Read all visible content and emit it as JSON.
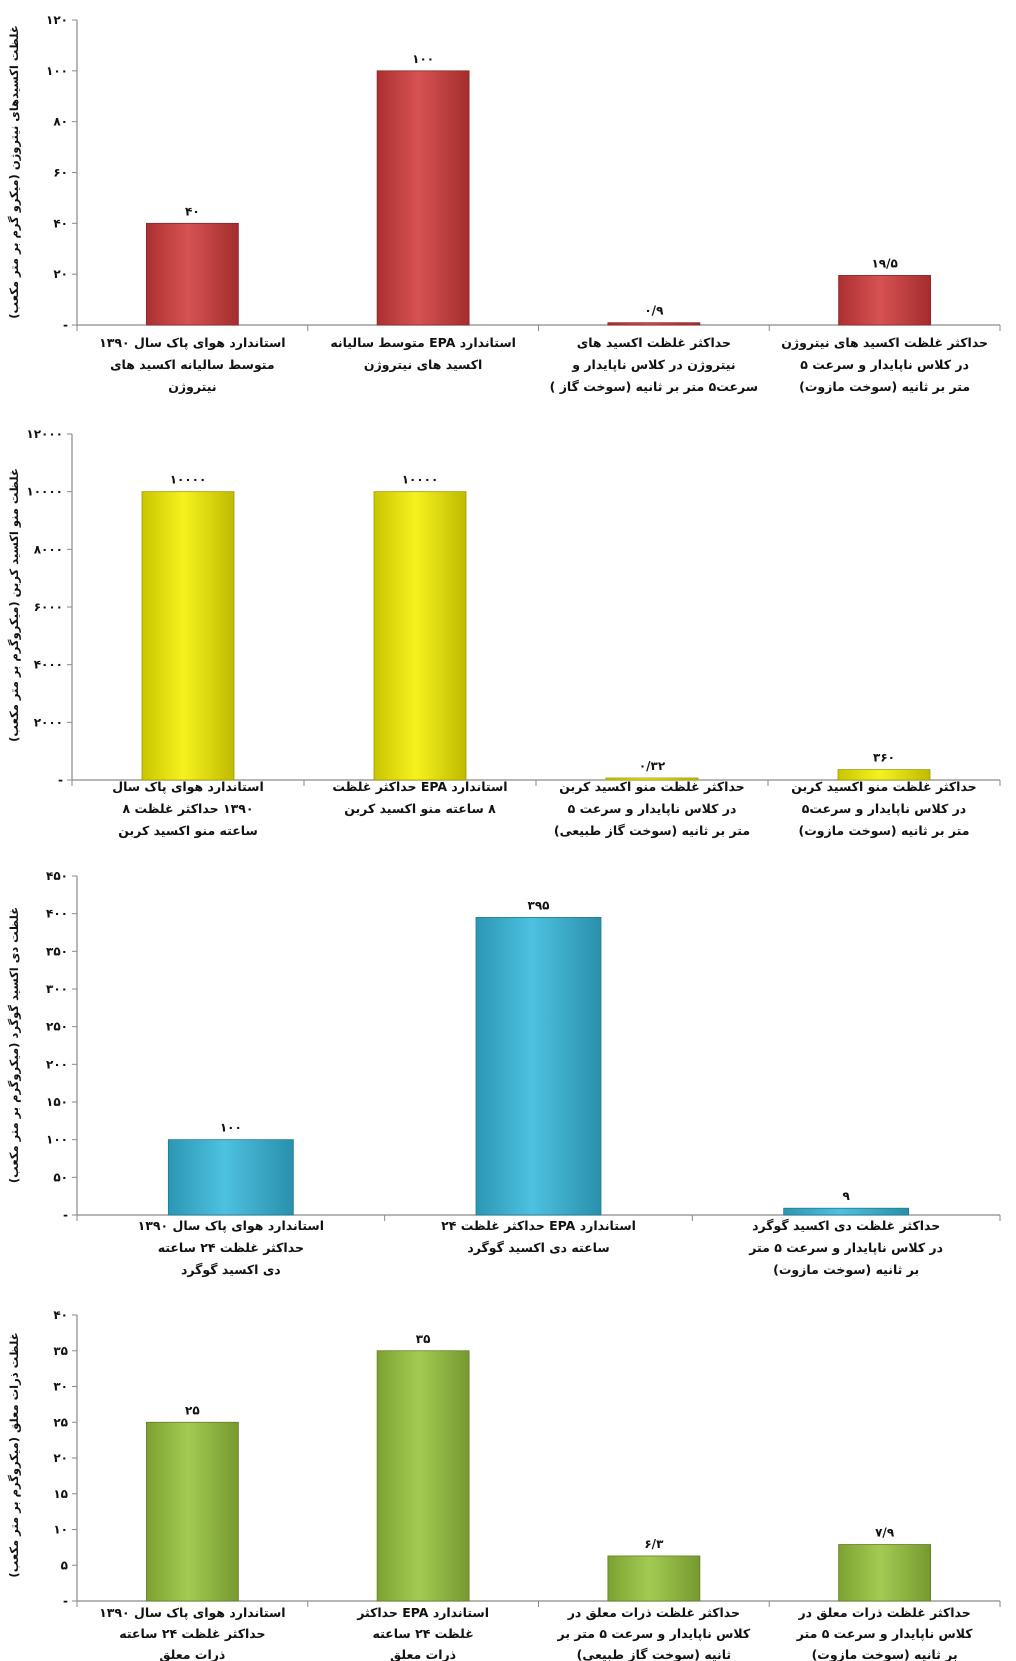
{
  "chart_data": [
    {
      "type": "bar",
      "ylabel": "غلظت اکسیدهای نیتروژن (میکرو گرم بر متر مکعب)",
      "ylim": [
        0,
        120
      ],
      "yticks": [
        0,
        20,
        40,
        60,
        80,
        100,
        120
      ],
      "ytick_labels": [
        "-",
        "۲۰",
        "۴۰",
        "۶۰",
        "۸۰",
        "۱۰۰",
        "۱۲۰"
      ],
      "color": "#d23a3a",
      "categories": [
        [
          "استاندارد هوای پاک سال ۱۳۹۰",
          "متوسط سالیانه اکسید های",
          "نیتروژن"
        ],
        [
          "استاندارد EPA متوسط سالیانه",
          "اکسید های نیتروژن"
        ],
        [
          "حداکثر غلظت اکسید های",
          "نیتروژن در کلاس ناپایدار و",
          "سرعت۵ متر بر ثانیه (سوخت گاز )"
        ],
        [
          "حداکثر غلظت اکسید های نیتروژن",
          "در کلاس ناپایدار و سرعت ۵",
          "متر بر ثانیه (سوخت مازوت)"
        ]
      ],
      "values": [
        40,
        100,
        0.9,
        19.5
      ],
      "value_labels": [
        "۴۰",
        "۱۰۰",
        "۰/۹",
        "۱۹/۵"
      ]
    },
    {
      "type": "bar",
      "ylabel": "غلظت منو اکسید کربن (میکروگرم بر متر مکعب)",
      "ylim": [
        0,
        12000
      ],
      "yticks": [
        0,
        2000,
        4000,
        6000,
        8000,
        10000,
        12000
      ],
      "ytick_labels": [
        "-",
        "۲۰۰۰",
        "۴۰۰۰",
        "۶۰۰۰",
        "۸۰۰۰",
        "۱۰۰۰۰",
        "۱۲۰۰۰"
      ],
      "color": "#f5f000",
      "categories": [
        [
          "استاندارد هوای پاک سال",
          "۱۳۹۰ حداکثر غلظت ۸",
          "ساعته منو اکسید کربن"
        ],
        [
          "استاندارد EPA حداکثر غلظت",
          "۸ ساعته منو اکسید کربن"
        ],
        [
          "حداکثر غلظت منو اکسید کربن",
          "در کلاس ناپایدار و سرعت ۵",
          "متر بر ثانیه (سوخت گاز طبیعی)"
        ],
        [
          "حداکثر غلظت منو اکسید کربن",
          "در کلاس ناپایدار و سرعت۵",
          "متر بر ثانیه (سوخت مازوت)"
        ]
      ],
      "values": [
        10000,
        10000,
        0.32,
        360
      ],
      "value_labels": [
        "۱۰۰۰۰",
        "۱۰۰۰۰",
        "۰/۳۲",
        "۳۶۰"
      ]
    },
    {
      "type": "bar",
      "ylabel": "غلظت دی اکسید گوگرد (میکروگرم بر متر مکعب)",
      "ylim": [
        0,
        450
      ],
      "yticks": [
        0,
        50,
        100,
        150,
        200,
        250,
        300,
        350,
        400,
        450
      ],
      "ytick_labels": [
        "-",
        "۵۰",
        "۱۰۰",
        "۱۵۰",
        "۲۰۰",
        "۲۵۰",
        "۳۰۰",
        "۳۵۰",
        "۴۰۰",
        "۴۵۰"
      ],
      "color": "#35b8dc",
      "categories": [
        [
          "استاندارد هوای پاک سال ۱۳۹۰",
          "حداکثر غلظت ۲۴ ساعته",
          "دی اکسید گوگرد"
        ],
        [
          "استاندارد EPA حداکثر غلظت ۲۴",
          "ساعته دی اکسید گوگرد"
        ],
        [
          "حداکثر غلظت دی اکسید گوگرد",
          "در کلاس ناپایدار و سرعت ۵ متر",
          "بر ثانیه (سوخت مازوت)"
        ]
      ],
      "values": [
        100,
        395,
        9
      ],
      "value_labels": [
        "۱۰۰",
        "۳۹۵",
        "۹"
      ]
    },
    {
      "type": "bar",
      "ylabel": "غلظت ذرات معلق (میکروگرم بر متر مکعب)",
      "ylim": [
        0,
        40
      ],
      "yticks": [
        0,
        5,
        10,
        15,
        20,
        25,
        30,
        35,
        40
      ],
      "ytick_labels": [
        "-",
        "۵",
        "۱۰",
        "۱۵",
        "۲۰",
        "۲۵",
        "۳۰",
        "۳۵",
        "۴۰"
      ],
      "color": "#97c43c",
      "categories": [
        [
          "استاندارد هوای پاک سال ۱۳۹۰",
          "حداکثر غلظت ۲۴ ساعته",
          "ذرات معلق"
        ],
        [
          "استاندارد EPA حداکثر",
          "غلظت ۲۴ ساعته",
          "ذرات معلق"
        ],
        [
          "حداکثر غلظت ذرات معلق در",
          "کلاس ناپایدار و سرعت ۵ متر بر",
          "ثانیه (سوخت گاز طبیعی)"
        ],
        [
          "حداکثر غلظت ذرات معلق در",
          "کلاس ناپایدار و سرعت ۵ متر",
          "بر ثانیه (سوخت مازوت)"
        ]
      ],
      "values": [
        25,
        35,
        6.3,
        7.9
      ],
      "value_labels": [
        "۲۵",
        "۳۵",
        "۶/۳",
        "۷/۹"
      ]
    }
  ]
}
